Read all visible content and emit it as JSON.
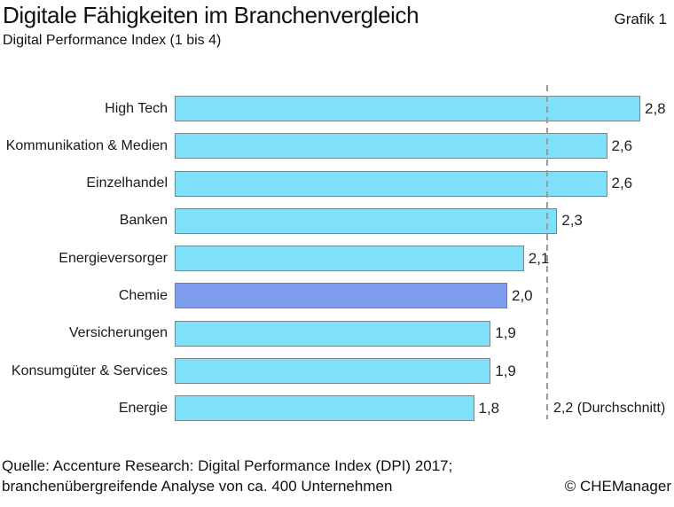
{
  "header": {
    "title": "Digitale Fähigkeiten im Branchenvergleich",
    "graphic_tag": "Grafik 1",
    "subtitle": "Digital Performance Index (1 bis 4)"
  },
  "footer": {
    "source_line1": "Quelle: Accenture Research: Digital Performance Index (DPI) 2017;",
    "source_line2": "branchenübergreifende Analyse von ca. 400 Unternehmen",
    "credit": "© CHEManager"
  },
  "chart_data": {
    "type": "bar",
    "orientation": "horizontal",
    "title": "Digitale Fähigkeiten im Branchenvergleich",
    "subtitle": "Digital Performance Index (1 bis 4)",
    "categories": [
      "High Tech",
      "Kommunikation & Medien",
      "Einzelhandel",
      "Banken",
      "Energieversorger",
      "Chemie",
      "Versicherungen",
      "Konsumgüter & Services",
      "Energie"
    ],
    "values": [
      2.8,
      2.6,
      2.6,
      2.3,
      2.1,
      2.0,
      1.9,
      1.9,
      1.8
    ],
    "value_labels": [
      "2,8",
      "2,6",
      "2,6",
      "2,3",
      "2,1",
      "2,0",
      "1,9",
      "1,9",
      "1,8"
    ],
    "highlight_category": "Chemie",
    "bar_color": "#7ee1f9",
    "highlight_color": "#7d9cf0",
    "average": {
      "value": 2.2,
      "label": "2,2 (Durchschnitt)"
    },
    "xlim": [
      0,
      4
    ],
    "axis_note": "1 bis 4",
    "grid": false,
    "legend": false
  }
}
